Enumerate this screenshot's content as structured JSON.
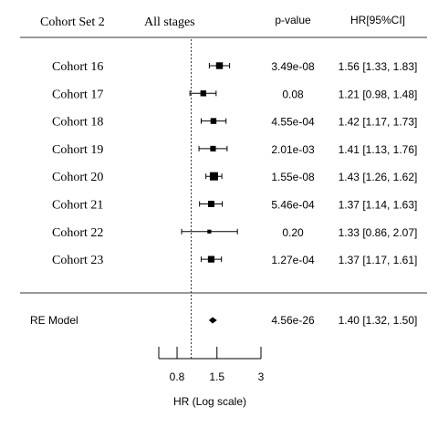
{
  "chart_data": {
    "type": "forest",
    "headers": {
      "set_title": "Cohort Set 2",
      "stage": "All stages",
      "pvalue": "p-value",
      "hr": "HR[95%CI]"
    },
    "xlabel": "HR (Log scale)",
    "x_scale": "log",
    "xlim": [
      0.6,
      3
    ],
    "x_ticks": [
      {
        "value": 0.6,
        "label": ""
      },
      {
        "value": 0.8,
        "label": "0.8"
      },
      {
        "value": 1.5,
        "label": "1.5"
      },
      {
        "value": 3,
        "label": "3"
      }
    ],
    "reference_line": 1,
    "rows": [
      {
        "label": "Cohort 16",
        "hr": 1.56,
        "lower": 1.33,
        "upper": 1.83,
        "pvalue": "3.49e-08",
        "hr_text": "1.56 [1.33, 1.83]",
        "weight": 0.6
      },
      {
        "label": "Cohort 17",
        "hr": 1.21,
        "lower": 0.98,
        "upper": 1.48,
        "pvalue": "0.08",
        "hr_text": "1.21 [0.98, 1.48]",
        "weight": 0.4
      },
      {
        "label": "Cohort 18",
        "hr": 1.42,
        "lower": 1.17,
        "upper": 1.73,
        "pvalue": "4.55e-04",
        "hr_text": "1.42 [1.17, 1.73]",
        "weight": 0.4
      },
      {
        "label": "Cohort 19",
        "hr": 1.41,
        "lower": 1.13,
        "upper": 1.76,
        "pvalue": "2.01e-03",
        "hr_text": "1.41 [1.13, 1.76]",
        "weight": 0.35
      },
      {
        "label": "Cohort 20",
        "hr": 1.43,
        "lower": 1.26,
        "upper": 1.62,
        "pvalue": "1.55e-08",
        "hr_text": "1.43 [1.26, 1.62]",
        "weight": 1.0
      },
      {
        "label": "Cohort 21",
        "hr": 1.37,
        "lower": 1.14,
        "upper": 1.63,
        "pvalue": "5.46e-04",
        "hr_text": "1.37 [1.14, 1.63]",
        "weight": 0.5
      },
      {
        "label": "Cohort 22",
        "hr": 1.33,
        "lower": 0.86,
        "upper": 2.07,
        "pvalue": "0.20",
        "hr_text": "1.33 [0.86, 2.07]",
        "weight": 0.1
      },
      {
        "label": "Cohort 23",
        "hr": 1.37,
        "lower": 1.17,
        "upper": 1.61,
        "pvalue": "1.27e-04",
        "hr_text": "1.37 [1.17, 1.61]",
        "weight": 0.55
      }
    ],
    "summary": {
      "label": "RE Model",
      "hr": 1.4,
      "lower": 1.32,
      "upper": 1.5,
      "pvalue": "4.56e-26",
      "hr_text": "1.40 [1.32, 1.50]"
    }
  }
}
